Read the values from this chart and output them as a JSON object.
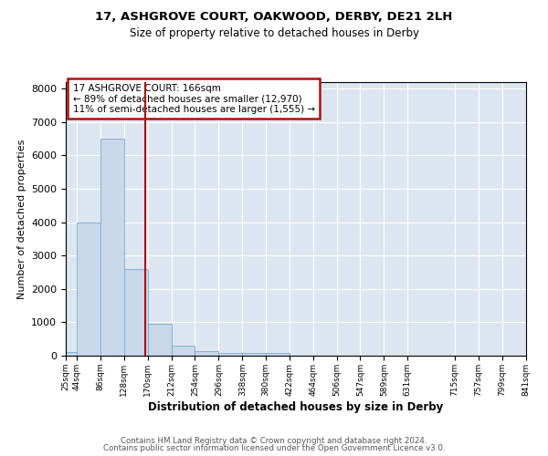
{
  "title1": "17, ASHGROVE COURT, OAKWOOD, DERBY, DE21 2LH",
  "title2": "Size of property relative to detached houses in Derby",
  "xlabel": "Distribution of detached houses by size in Derby",
  "ylabel": "Number of detached properties",
  "footer1": "Contains HM Land Registry data © Crown copyright and database right 2024.",
  "footer2": "Contains public sector information licensed under the Open Government Licence v3.0.",
  "annotation_title": "17 ASHGROVE COURT: 166sqm",
  "annotation_line1": "← 89% of detached houses are smaller (12,970)",
  "annotation_line2": "11% of semi-detached houses are larger (1,555) →",
  "bar_lefts": [
    25,
    44,
    86,
    128,
    170,
    212,
    254,
    296,
    338,
    380,
    422,
    464,
    506,
    547,
    589,
    631,
    715,
    757,
    799
  ],
  "bar_rights": [
    44,
    86,
    128,
    170,
    212,
    254,
    296,
    338,
    380,
    422,
    464,
    506,
    547,
    589,
    631,
    715,
    757,
    799,
    841
  ],
  "bar_heights": [
    100,
    4000,
    6500,
    2600,
    950,
    300,
    130,
    80,
    80,
    80,
    0,
    0,
    0,
    0,
    0,
    0,
    0,
    0,
    0
  ],
  "bar_color": "#c8d8e8",
  "bar_edgecolor": "#7aaac8",
  "vline_color": "#aa1111",
  "vline_x": 166,
  "annotation_box_edgecolor": "#aa1111",
  "background_color": "#dde6f0",
  "grid_color": "#ffffff",
  "ylim": [
    0,
    8200
  ],
  "xlim": [
    25,
    841
  ],
  "tick_positions": [
    25,
    44,
    86,
    128,
    170,
    212,
    254,
    296,
    338,
    380,
    422,
    464,
    506,
    547,
    589,
    631,
    715,
    757,
    799,
    841
  ],
  "tick_labels": [
    "25sqm",
    "44sqm",
    "86sqm",
    "128sqm",
    "170sqm",
    "212sqm",
    "254sqm",
    "296sqm",
    "338sqm",
    "380sqm",
    "422sqm",
    "464sqm",
    "506sqm",
    "547sqm",
    "589sqm",
    "631sqm",
    "715sqm",
    "757sqm",
    "799sqm",
    "841sqm"
  ]
}
